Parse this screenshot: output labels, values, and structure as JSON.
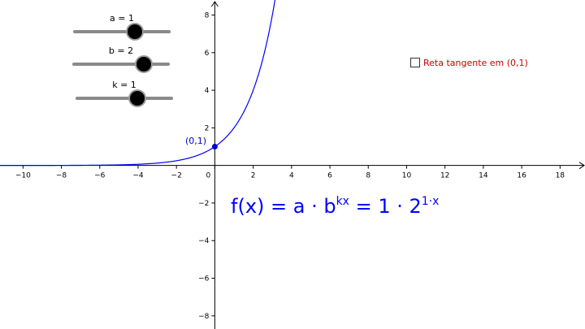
{
  "sliders": [
    {
      "label": "a = 1",
      "value": 1,
      "min": -5,
      "max": 5
    },
    {
      "label": "b = 2",
      "value": 2,
      "min": -5,
      "max": 5
    },
    {
      "label": "k = 1",
      "value": 1,
      "min": -5,
      "max": 5
    }
  ],
  "checkbox": {
    "label": "Reta tangente em (0,1)",
    "checked": false,
    "color": "#cc0000"
  },
  "formula": {
    "lhs": "f(x) = a · b",
    "lhs_exp": "kx",
    "rhs": " = 1 · 2",
    "rhs_exp": "1·x"
  },
  "point": {
    "label": "(0,1)",
    "x": 0,
    "y": 1
  },
  "chart_data": {
    "type": "line",
    "function": "a * b^(k*x)",
    "params": {
      "a": 1,
      "b": 2,
      "k": 1
    },
    "xlim": [
      -11.2,
      19.3
    ],
    "ylim": [
      -8.7,
      8.8
    ],
    "x_ticks": [
      -10,
      -8,
      -6,
      -4,
      -2,
      0,
      2,
      4,
      6,
      8,
      10,
      12,
      14,
      16,
      18
    ],
    "y_ticks": [
      -8,
      -6,
      -4,
      -2,
      2,
      4,
      6,
      8
    ],
    "curve_color": "#0000ff",
    "axis_color": "#000000"
  }
}
